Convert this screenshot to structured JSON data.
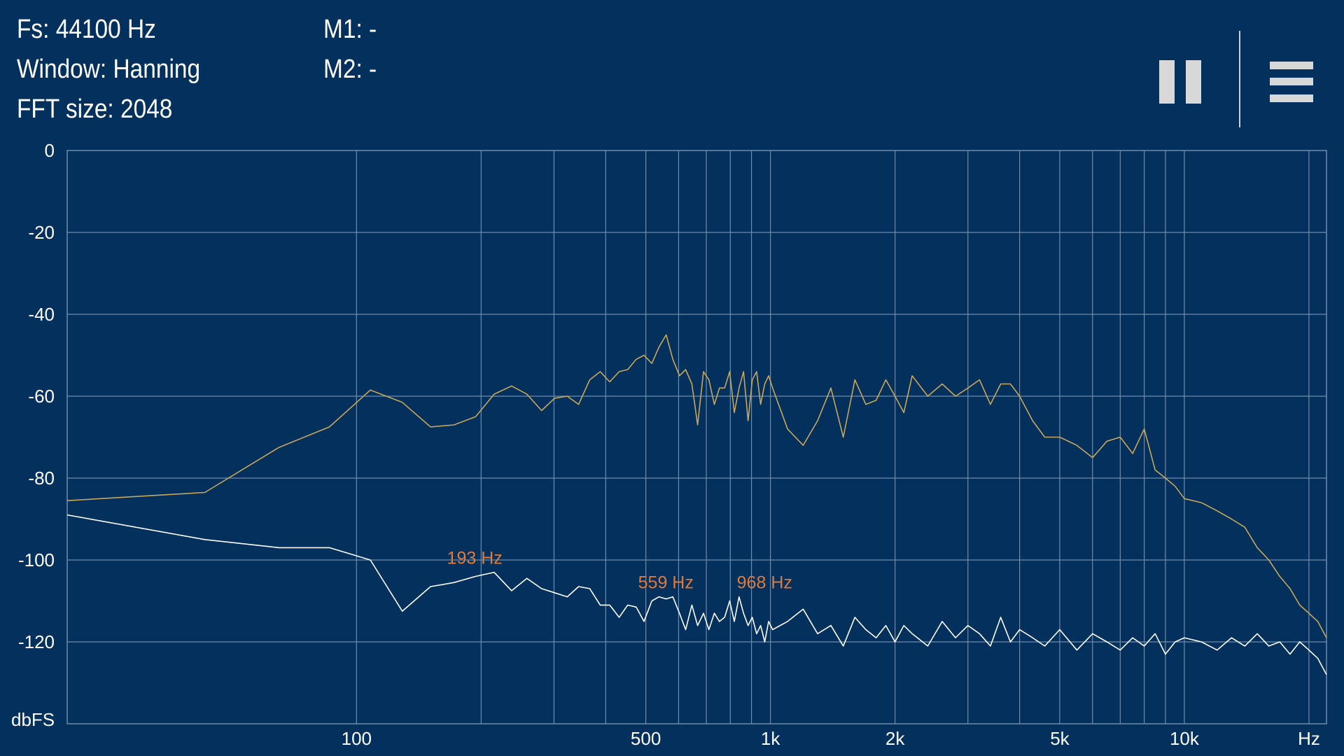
{
  "info": {
    "fs": "Fs: 44100 Hz",
    "window": "Window: Hanning",
    "fft_size": "FFT size: 2048",
    "m1": "M1: -",
    "m2": "M2: -"
  },
  "toolbar": {
    "pause_icon": "pause-icon",
    "menu_icon": "menu-icon"
  },
  "colors": {
    "background": "#03305c",
    "grid": "#6f8cab",
    "peak_series": "#c9a75a",
    "live_series": "#ffffff",
    "marker_label": "#e07a3a"
  },
  "chart_data": {
    "type": "line",
    "x_scale": "log",
    "xlim": [
      20,
      22050
    ],
    "ylim": [
      -140,
      0
    ],
    "ylabel": "dbFS",
    "xlabel": "Hz",
    "y_ticks": [
      0,
      -20,
      -40,
      -60,
      -80,
      -100,
      -120
    ],
    "y_tick_labels": [
      "0",
      "-20",
      "-40",
      "-60",
      "-80",
      "-100",
      "-120"
    ],
    "x_tick_values": [
      100,
      500,
      1000,
      2000,
      5000,
      10000
    ],
    "x_tick_labels": [
      "100",
      "500",
      "1k",
      "2k",
      "5k",
      "10k"
    ],
    "x_grid": [
      100,
      200,
      300,
      400,
      500,
      600,
      700,
      800,
      900,
      1000,
      2000,
      3000,
      4000,
      5000,
      6000,
      7000,
      8000,
      9000,
      10000,
      20000
    ],
    "markers": [
      {
        "label": "193 Hz",
        "x": 193,
        "y": -103
      },
      {
        "label": "559 Hz",
        "x": 559,
        "y": -109
      },
      {
        "label": "968 Hz",
        "x": 968,
        "y": -109
      }
    ],
    "series": [
      {
        "color": "#c9a75a",
        "x": [
          20,
          43,
          65,
          86,
          108,
          129,
          151,
          172,
          194,
          215,
          237,
          258,
          280,
          301,
          323,
          344,
          366,
          388,
          409,
          431,
          452,
          474,
          495,
          517,
          538,
          560,
          581,
          603,
          624,
          646,
          667,
          689,
          710,
          732,
          753,
          775,
          797,
          818,
          840,
          861,
          883,
          904,
          926,
          947,
          969,
          990,
          1012,
          1100,
          1200,
          1300,
          1400,
          1500,
          1600,
          1700,
          1800,
          1900,
          2000,
          2100,
          2200,
          2400,
          2600,
          2800,
          3000,
          3200,
          3400,
          3600,
          3800,
          4000,
          4300,
          4600,
          5000,
          5500,
          6000,
          6500,
          7000,
          7500,
          8000,
          8500,
          9000,
          9500,
          10000,
          11000,
          12000,
          13000,
          14000,
          15000,
          16000,
          17000,
          18000,
          19000,
          20000,
          21000,
          22050
        ],
        "y": [
          -85.5,
          -83.5,
          -72.5,
          -67.5,
          -58.5,
          -61.5,
          -67.5,
          -67,
          -65,
          -59.5,
          -57.5,
          -59.5,
          -63.5,
          -60.5,
          -60,
          -62,
          -56,
          -54,
          -56.5,
          -54,
          -53.5,
          -51,
          -50,
          -52,
          -48,
          -45,
          -51,
          -55,
          -53.5,
          -57,
          -67,
          -54,
          -56,
          -62,
          -58,
          -58,
          -54,
          -64,
          -58,
          -54,
          -66,
          -56,
          -54,
          -62,
          -57,
          -55,
          -58,
          -68,
          -72,
          -66,
          -58,
          -70,
          -56,
          -62,
          -61,
          -56,
          -60,
          -64,
          -55,
          -60,
          -57,
          -60,
          -58,
          -56,
          -62,
          -57,
          -57,
          -60,
          -66,
          -70,
          -70,
          -72,
          -75,
          -71,
          -70,
          -74,
          -68,
          -78,
          -80,
          -82,
          -85,
          -86,
          -88,
          -90,
          -92,
          -97,
          -100,
          -104,
          -107,
          -111,
          -113,
          -115,
          -119
        ]
      },
      {
        "color": "#ffffff",
        "x": [
          20,
          43,
          65,
          86,
          108,
          129,
          151,
          172,
          194,
          215,
          237,
          258,
          280,
          301,
          323,
          344,
          366,
          388,
          409,
          431,
          452,
          474,
          495,
          517,
          538,
          560,
          581,
          603,
          624,
          646,
          667,
          689,
          710,
          732,
          753,
          775,
          797,
          818,
          840,
          861,
          883,
          904,
          926,
          947,
          969,
          990,
          1012,
          1100,
          1200,
          1300,
          1400,
          1500,
          1600,
          1700,
          1800,
          1900,
          2000,
          2100,
          2200,
          2400,
          2600,
          2800,
          3000,
          3200,
          3400,
          3600,
          3800,
          4000,
          4300,
          4600,
          5000,
          5500,
          6000,
          6500,
          7000,
          7500,
          8000,
          8500,
          9000,
          9500,
          10000,
          11000,
          12000,
          13000,
          14000,
          15000,
          16000,
          17000,
          18000,
          19000,
          20000,
          21000,
          22050
        ],
        "y": [
          -89,
          -95,
          -97,
          -97,
          -100,
          -112.5,
          -106.5,
          -105.5,
          -104,
          -103,
          -107.5,
          -104.5,
          -107,
          -108,
          -109,
          -106.5,
          -107,
          -111,
          -111,
          -114,
          -111,
          -111.5,
          -115,
          -110,
          -109,
          -109.5,
          -109,
          -113,
          -117,
          -111,
          -116,
          -113,
          -117,
          -113,
          -115,
          -114,
          -110,
          -115,
          -109,
          -113,
          -116,
          -114,
          -118,
          -116,
          -120,
          -115,
          -117,
          -115,
          -112,
          -118,
          -116,
          -121,
          -114,
          -117,
          -119,
          -116,
          -120,
          -116,
          -118,
          -121,
          -115,
          -119,
          -116,
          -118,
          -121,
          -114,
          -120,
          -117,
          -119,
          -121,
          -117,
          -122,
          -118,
          -120,
          -122,
          -119,
          -121,
          -118,
          -123,
          -120,
          -119,
          -120,
          -122,
          -119,
          -121,
          -118,
          -121,
          -120,
          -123,
          -120,
          -122,
          -124,
          -128
        ]
      }
    ]
  }
}
